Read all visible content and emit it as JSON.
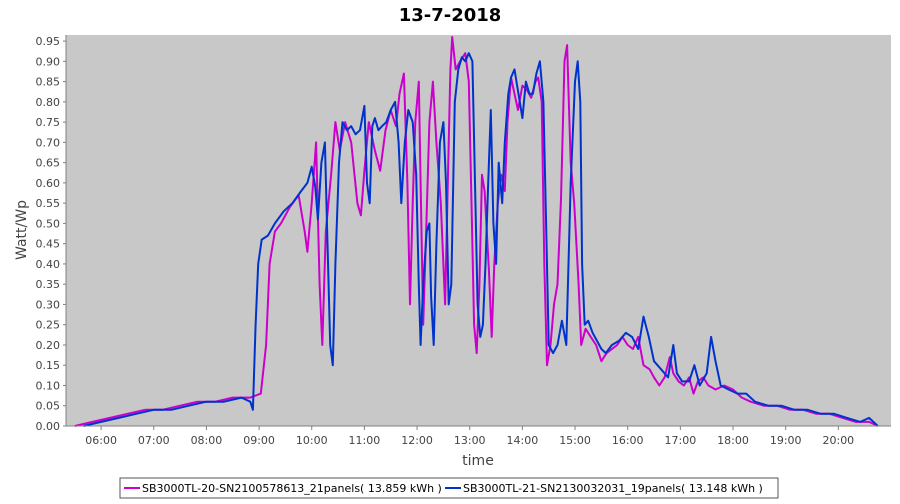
{
  "chart_data": {
    "type": "line",
    "title": "13-7-2018",
    "xlabel": "time",
    "ylabel": "Watt/Wp",
    "xlim": [
      "05:20",
      "21:00"
    ],
    "ylim": [
      0,
      0.965
    ],
    "xticks": [
      "06:00",
      "07:00",
      "08:00",
      "09:00",
      "10:00",
      "11:00",
      "12:00",
      "13:00",
      "14:00",
      "15:00",
      "16:00",
      "17:00",
      "18:00",
      "19:00",
      "20:00"
    ],
    "yticks": [
      "0.00",
      "0.05",
      "0.10",
      "0.15",
      "0.20",
      "0.25",
      "0.30",
      "0.35",
      "0.40",
      "0.45",
      "0.50",
      "0.55",
      "0.60",
      "0.65",
      "0.70",
      "0.75",
      "0.80",
      "0.85",
      "0.90",
      "0.95"
    ],
    "grid": false,
    "background": "#c8c8c8",
    "legend": "bottom",
    "series": [
      {
        "name": "SB3000TL-20-SN2100578613_21panels( 13.859 kWh )",
        "color": "#cc00cc",
        "points": [
          [
            "05:30",
            0.0
          ],
          [
            "05:50",
            0.01
          ],
          [
            "06:10",
            0.02
          ],
          [
            "06:30",
            0.03
          ],
          [
            "06:50",
            0.04
          ],
          [
            "07:10",
            0.04
          ],
          [
            "07:30",
            0.05
          ],
          [
            "07:50",
            0.06
          ],
          [
            "08:10",
            0.06
          ],
          [
            "08:30",
            0.07
          ],
          [
            "08:50",
            0.07
          ],
          [
            "09:02",
            0.08
          ],
          [
            "09:08",
            0.2
          ],
          [
            "09:12",
            0.4
          ],
          [
            "09:18",
            0.48
          ],
          [
            "09:25",
            0.5
          ],
          [
            "09:35",
            0.54
          ],
          [
            "09:45",
            0.57
          ],
          [
            "09:52",
            0.48
          ],
          [
            "09:55",
            0.43
          ],
          [
            "10:00",
            0.55
          ],
          [
            "10:05",
            0.7
          ],
          [
            "10:09",
            0.35
          ],
          [
            "10:12",
            0.2
          ],
          [
            "10:16",
            0.48
          ],
          [
            "10:22",
            0.62
          ],
          [
            "10:27",
            0.75
          ],
          [
            "10:32",
            0.68
          ],
          [
            "10:38",
            0.75
          ],
          [
            "10:45",
            0.7
          ],
          [
            "10:52",
            0.55
          ],
          [
            "10:56",
            0.52
          ],
          [
            "11:00",
            0.63
          ],
          [
            "11:05",
            0.75
          ],
          [
            "11:12",
            0.68
          ],
          [
            "11:18",
            0.63
          ],
          [
            "11:24",
            0.73
          ],
          [
            "11:30",
            0.78
          ],
          [
            "11:36",
            0.74
          ],
          [
            "11:40",
            0.82
          ],
          [
            "11:45",
            0.87
          ],
          [
            "11:49",
            0.6
          ],
          [
            "11:52",
            0.3
          ],
          [
            "11:55",
            0.55
          ],
          [
            "11:58",
            0.75
          ],
          [
            "12:02",
            0.85
          ],
          [
            "12:04",
            0.6
          ],
          [
            "12:07",
            0.25
          ],
          [
            "12:10",
            0.45
          ],
          [
            "12:14",
            0.75
          ],
          [
            "12:18",
            0.85
          ],
          [
            "12:22",
            0.7
          ],
          [
            "12:27",
            0.55
          ],
          [
            "12:32",
            0.3
          ],
          [
            "12:35",
            0.6
          ],
          [
            "12:38",
            0.88
          ],
          [
            "12:40",
            0.96
          ],
          [
            "12:44",
            0.88
          ],
          [
            "12:49",
            0.9
          ],
          [
            "12:55",
            0.92
          ],
          [
            "12:59",
            0.85
          ],
          [
            "13:02",
            0.55
          ],
          [
            "13:05",
            0.25
          ],
          [
            "13:08",
            0.18
          ],
          [
            "13:11",
            0.35
          ],
          [
            "13:14",
            0.62
          ],
          [
            "13:17",
            0.58
          ],
          [
            "13:22",
            0.38
          ],
          [
            "13:25",
            0.22
          ],
          [
            "13:28",
            0.4
          ],
          [
            "13:32",
            0.55
          ],
          [
            "13:36",
            0.62
          ],
          [
            "13:40",
            0.58
          ],
          [
            "13:43",
            0.75
          ],
          [
            "13:47",
            0.86
          ],
          [
            "13:51",
            0.82
          ],
          [
            "13:55",
            0.78
          ],
          [
            "14:00",
            0.84
          ],
          [
            "14:05",
            0.83
          ],
          [
            "14:10",
            0.81
          ],
          [
            "14:15",
            0.85
          ],
          [
            "14:18",
            0.86
          ],
          [
            "14:22",
            0.8
          ],
          [
            "14:25",
            0.4
          ],
          [
            "14:28",
            0.15
          ],
          [
            "14:32",
            0.2
          ],
          [
            "14:36",
            0.3
          ],
          [
            "14:40",
            0.35
          ],
          [
            "14:44",
            0.56
          ],
          [
            "14:48",
            0.9
          ],
          [
            "14:51",
            0.94
          ],
          [
            "14:55",
            0.65
          ],
          [
            "14:59",
            0.55
          ],
          [
            "15:04",
            0.35
          ],
          [
            "15:07",
            0.2
          ],
          [
            "15:12",
            0.24
          ],
          [
            "15:18",
            0.22
          ],
          [
            "15:24",
            0.2
          ],
          [
            "15:30",
            0.16
          ],
          [
            "15:36",
            0.18
          ],
          [
            "15:42",
            0.19
          ],
          [
            "15:48",
            0.2
          ],
          [
            "15:54",
            0.22
          ],
          [
            "16:00",
            0.2
          ],
          [
            "16:06",
            0.19
          ],
          [
            "16:12",
            0.22
          ],
          [
            "16:18",
            0.15
          ],
          [
            "16:25",
            0.14
          ],
          [
            "16:30",
            0.12
          ],
          [
            "16:36",
            0.1
          ],
          [
            "16:42",
            0.12
          ],
          [
            "16:48",
            0.17
          ],
          [
            "16:52",
            0.13
          ],
          [
            "16:58",
            0.11
          ],
          [
            "17:04",
            0.1
          ],
          [
            "17:10",
            0.12
          ],
          [
            "17:15",
            0.08
          ],
          [
            "17:20",
            0.11
          ],
          [
            "17:26",
            0.12
          ],
          [
            "17:32",
            0.1
          ],
          [
            "17:40",
            0.09
          ],
          [
            "17:50",
            0.1
          ],
          [
            "18:00",
            0.09
          ],
          [
            "18:10",
            0.07
          ],
          [
            "18:20",
            0.06
          ],
          [
            "18:35",
            0.05
          ],
          [
            "18:50",
            0.05
          ],
          [
            "19:05",
            0.04
          ],
          [
            "19:20",
            0.04
          ],
          [
            "19:35",
            0.03
          ],
          [
            "19:50",
            0.03
          ],
          [
            "20:05",
            0.02
          ],
          [
            "20:20",
            0.01
          ],
          [
            "20:35",
            0.01
          ],
          [
            "20:45",
            0.0
          ]
        ]
      },
      {
        "name": "SB3000TL-21-SN2130032031_19panels( 13.148 kWh )",
        "color": "#0033cc",
        "points": [
          [
            "05:40",
            0.0
          ],
          [
            "06:00",
            0.01
          ],
          [
            "06:20",
            0.02
          ],
          [
            "06:40",
            0.03
          ],
          [
            "07:00",
            0.04
          ],
          [
            "07:20",
            0.04
          ],
          [
            "07:40",
            0.05
          ],
          [
            "08:00",
            0.06
          ],
          [
            "08:20",
            0.06
          ],
          [
            "08:40",
            0.07
          ],
          [
            "08:50",
            0.06
          ],
          [
            "08:53",
            0.04
          ],
          [
            "08:56",
            0.25
          ],
          [
            "08:59",
            0.4
          ],
          [
            "09:03",
            0.46
          ],
          [
            "09:10",
            0.47
          ],
          [
            "09:18",
            0.5
          ],
          [
            "09:28",
            0.53
          ],
          [
            "09:38",
            0.55
          ],
          [
            "09:48",
            0.58
          ],
          [
            "09:55",
            0.6
          ],
          [
            "10:00",
            0.64
          ],
          [
            "10:04",
            0.59
          ],
          [
            "10:07",
            0.51
          ],
          [
            "10:11",
            0.65
          ],
          [
            "10:15",
            0.7
          ],
          [
            "10:18",
            0.45
          ],
          [
            "10:21",
            0.2
          ],
          [
            "10:24",
            0.15
          ],
          [
            "10:27",
            0.4
          ],
          [
            "10:31",
            0.65
          ],
          [
            "10:35",
            0.75
          ],
          [
            "10:40",
            0.73
          ],
          [
            "10:45",
            0.74
          ],
          [
            "10:50",
            0.72
          ],
          [
            "10:55",
            0.73
          ],
          [
            "11:00",
            0.79
          ],
          [
            "11:03",
            0.6
          ],
          [
            "11:06",
            0.55
          ],
          [
            "11:09",
            0.74
          ],
          [
            "11:12",
            0.76
          ],
          [
            "11:16",
            0.73
          ],
          [
            "11:20",
            0.74
          ],
          [
            "11:25",
            0.75
          ],
          [
            "11:30",
            0.78
          ],
          [
            "11:35",
            0.8
          ],
          [
            "11:39",
            0.7
          ],
          [
            "11:42",
            0.55
          ],
          [
            "11:46",
            0.7
          ],
          [
            "11:50",
            0.78
          ],
          [
            "11:55",
            0.75
          ],
          [
            "11:59",
            0.62
          ],
          [
            "12:02",
            0.35
          ],
          [
            "12:04",
            0.2
          ],
          [
            "12:07",
            0.35
          ],
          [
            "12:11",
            0.48
          ],
          [
            "12:14",
            0.5
          ],
          [
            "12:16",
            0.32
          ],
          [
            "12:19",
            0.2
          ],
          [
            "12:22",
            0.45
          ],
          [
            "12:26",
            0.7
          ],
          [
            "12:30",
            0.75
          ],
          [
            "12:33",
            0.6
          ],
          [
            "12:36",
            0.3
          ],
          [
            "12:39",
            0.35
          ],
          [
            "12:43",
            0.8
          ],
          [
            "12:47",
            0.88
          ],
          [
            "12:51",
            0.91
          ],
          [
            "12:55",
            0.9
          ],
          [
            "12:59",
            0.92
          ],
          [
            "13:03",
            0.9
          ],
          [
            "13:06",
            0.6
          ],
          [
            "13:09",
            0.3
          ],
          [
            "13:12",
            0.22
          ],
          [
            "13:15",
            0.25
          ],
          [
            "13:18",
            0.4
          ],
          [
            "13:21",
            0.6
          ],
          [
            "13:24",
            0.78
          ],
          [
            "13:27",
            0.5
          ],
          [
            "13:30",
            0.4
          ],
          [
            "13:33",
            0.65
          ],
          [
            "13:37",
            0.55
          ],
          [
            "13:40",
            0.7
          ],
          [
            "13:44",
            0.82
          ],
          [
            "13:47",
            0.86
          ],
          [
            "13:51",
            0.88
          ],
          [
            "13:54",
            0.84
          ],
          [
            "13:57",
            0.8
          ],
          [
            "14:00",
            0.76
          ],
          [
            "14:04",
            0.85
          ],
          [
            "14:08",
            0.82
          ],
          [
            "14:12",
            0.82
          ],
          [
            "14:16",
            0.87
          ],
          [
            "14:20",
            0.9
          ],
          [
            "14:24",
            0.8
          ],
          [
            "14:27",
            0.5
          ],
          [
            "14:30",
            0.2
          ],
          [
            "14:35",
            0.18
          ],
          [
            "14:40",
            0.2
          ],
          [
            "14:45",
            0.26
          ],
          [
            "14:50",
            0.2
          ],
          [
            "14:55",
            0.6
          ],
          [
            "15:00",
            0.85
          ],
          [
            "15:03",
            0.9
          ],
          [
            "15:06",
            0.8
          ],
          [
            "15:08",
            0.4
          ],
          [
            "15:11",
            0.25
          ],
          [
            "15:15",
            0.26
          ],
          [
            "15:20",
            0.23
          ],
          [
            "15:25",
            0.21
          ],
          [
            "15:30",
            0.19
          ],
          [
            "15:35",
            0.18
          ],
          [
            "15:42",
            0.2
          ],
          [
            "15:50",
            0.21
          ],
          [
            "15:58",
            0.23
          ],
          [
            "16:05",
            0.22
          ],
          [
            "16:12",
            0.19
          ],
          [
            "16:18",
            0.27
          ],
          [
            "16:24",
            0.22
          ],
          [
            "16:30",
            0.16
          ],
          [
            "16:38",
            0.14
          ],
          [
            "16:46",
            0.12
          ],
          [
            "16:52",
            0.2
          ],
          [
            "16:56",
            0.13
          ],
          [
            "17:02",
            0.11
          ],
          [
            "17:10",
            0.11
          ],
          [
            "17:16",
            0.15
          ],
          [
            "17:22",
            0.1
          ],
          [
            "17:30",
            0.13
          ],
          [
            "17:35",
            0.22
          ],
          [
            "17:40",
            0.16
          ],
          [
            "17:46",
            0.1
          ],
          [
            "17:55",
            0.09
          ],
          [
            "18:05",
            0.08
          ],
          [
            "18:15",
            0.08
          ],
          [
            "18:25",
            0.06
          ],
          [
            "18:40",
            0.05
          ],
          [
            "18:55",
            0.05
          ],
          [
            "19:10",
            0.04
          ],
          [
            "19:25",
            0.04
          ],
          [
            "19:40",
            0.03
          ],
          [
            "19:55",
            0.03
          ],
          [
            "20:10",
            0.02
          ],
          [
            "20:25",
            0.01
          ],
          [
            "20:35",
            0.02
          ],
          [
            "20:40",
            0.01
          ],
          [
            "20:45",
            0.0
          ]
        ]
      }
    ]
  }
}
